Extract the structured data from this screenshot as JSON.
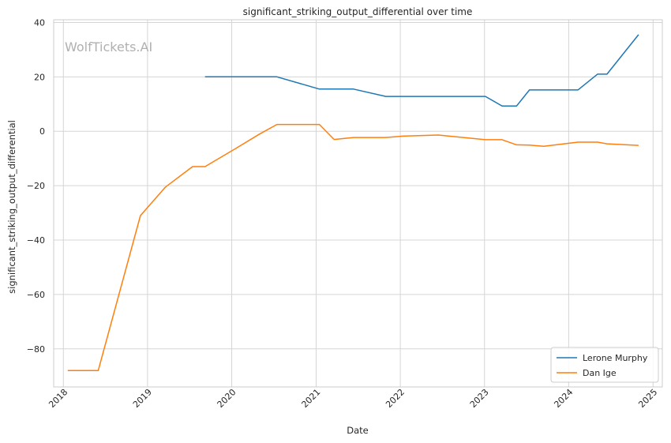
{
  "chart_data": {
    "type": "line",
    "title": "significant_striking_output_differential over time",
    "xlabel": "Date",
    "ylabel": "significant_striking_output_differential",
    "watermark": "WolfTickets.AI",
    "x_ticks": [
      "2018",
      "2019",
      "2020",
      "2021",
      "2022",
      "2023",
      "2024",
      "2025"
    ],
    "y_ticks": [
      40,
      20,
      0,
      -20,
      -40,
      -60,
      -80
    ],
    "xlim": [
      "2017-11-20",
      "2025-02-10"
    ],
    "ylim": [
      -94,
      41
    ],
    "grid": true,
    "legend_position": "lower-right",
    "series": [
      {
        "name": "Lerone Murphy",
        "color": "#1f77b4",
        "points": [
          [
            "2019-09-07",
            20
          ],
          [
            "2020-07-15",
            20
          ],
          [
            "2021-01-15",
            15.5
          ],
          [
            "2021-06-12",
            15.5
          ],
          [
            "2021-10-30",
            12.8
          ],
          [
            "2023-01-05",
            12.8
          ],
          [
            "2023-03-18",
            9.3
          ],
          [
            "2023-05-20",
            9.3
          ],
          [
            "2023-07-15",
            15.2
          ],
          [
            "2024-02-10",
            15.2
          ],
          [
            "2024-05-05",
            21
          ],
          [
            "2024-06-15",
            21
          ],
          [
            "2024-10-30",
            35.5
          ]
        ]
      },
      {
        "name": "Dan Ige",
        "color": "#ff7f0e",
        "points": [
          [
            "2018-01-20",
            -88
          ],
          [
            "2018-06-01",
            -88
          ],
          [
            "2018-12-01",
            -31
          ],
          [
            "2019-03-20",
            -20.5
          ],
          [
            "2019-07-15",
            -13
          ],
          [
            "2019-09-07",
            -13
          ],
          [
            "2020-01-15",
            -6.5
          ],
          [
            "2020-05-01",
            -1
          ],
          [
            "2020-07-15",
            2.5
          ],
          [
            "2021-01-15",
            2.5
          ],
          [
            "2021-03-20",
            -3
          ],
          [
            "2021-06-12",
            -2.3
          ],
          [
            "2021-10-30",
            -2.3
          ],
          [
            "2022-01-10",
            -1.8
          ],
          [
            "2022-06-15",
            -1.4
          ],
          [
            "2023-01-05",
            -3.1
          ],
          [
            "2023-03-18",
            -3.1
          ],
          [
            "2023-05-20",
            -5
          ],
          [
            "2023-07-15",
            -5.1
          ],
          [
            "2023-09-15",
            -5.5
          ],
          [
            "2024-02-10",
            -4
          ],
          [
            "2024-05-05",
            -4
          ],
          [
            "2024-06-15",
            -4.6
          ],
          [
            "2024-10-30",
            -5.2
          ]
        ]
      }
    ]
  }
}
